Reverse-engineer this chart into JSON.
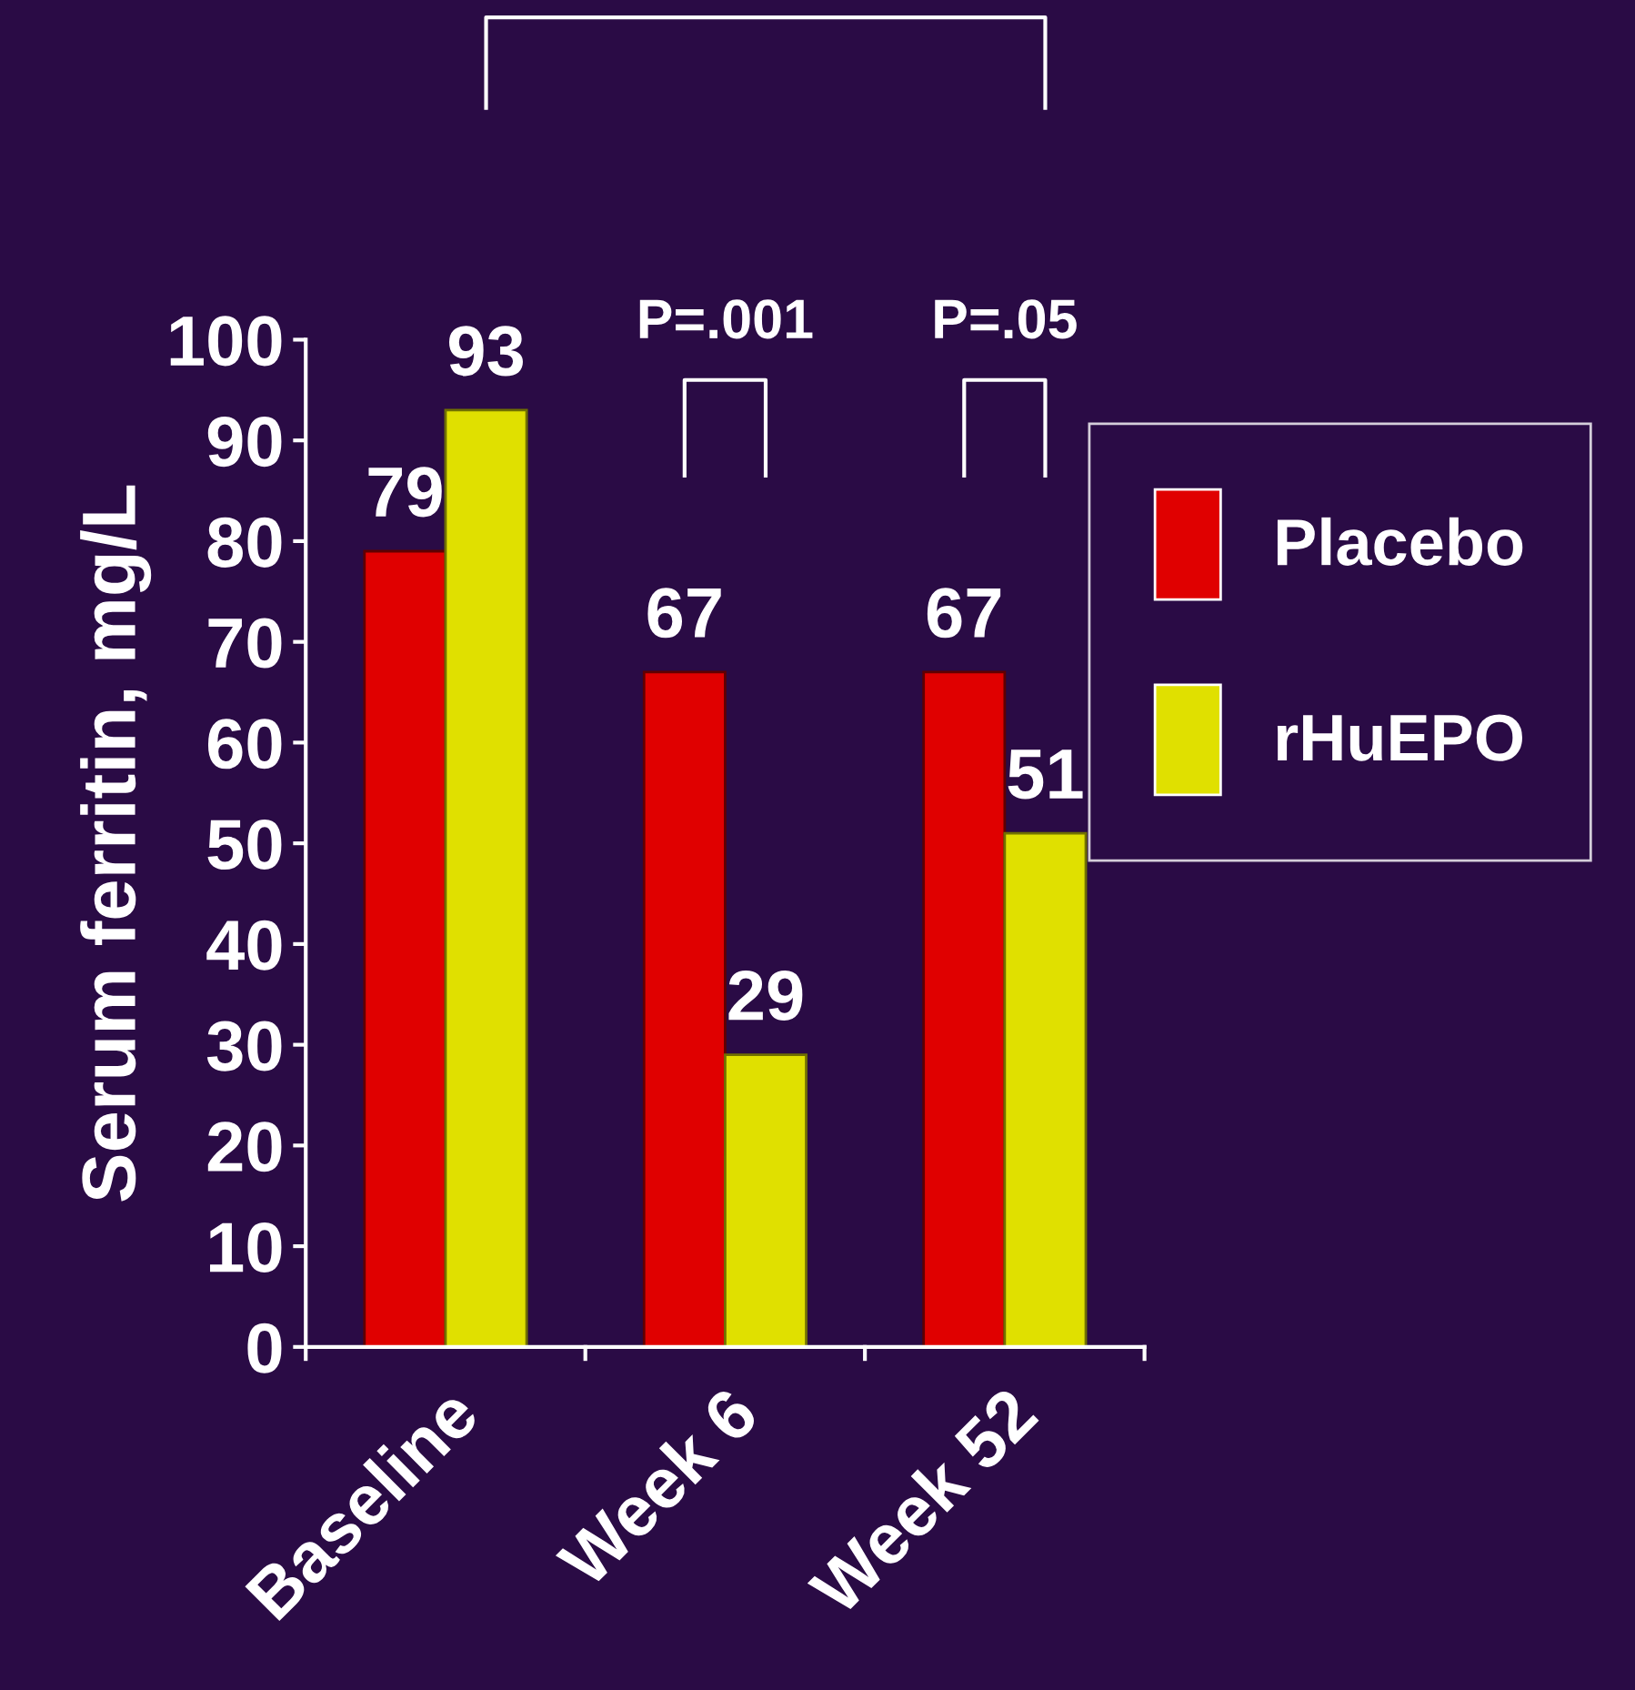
{
  "chart_data": {
    "type": "bar",
    "ylabel": "Serum ferritin, mg/L",
    "categories": [
      "Baseline",
      "Week 6",
      "Week 52"
    ],
    "series": [
      {
        "name": "Placebo",
        "color": "#e00000",
        "values": [
          79,
          67,
          67
        ]
      },
      {
        "name": "rHuEPO",
        "color": "#e0e000",
        "values": [
          93,
          29,
          51
        ]
      }
    ],
    "ylim": [
      0,
      100
    ],
    "yticks": [
      0,
      10,
      20,
      30,
      40,
      50,
      60,
      70,
      80,
      90,
      100
    ],
    "grid": false,
    "legend": "right",
    "data_labels": true,
    "annotations": [
      "P=.001",
      "P=.05"
    ]
  }
}
